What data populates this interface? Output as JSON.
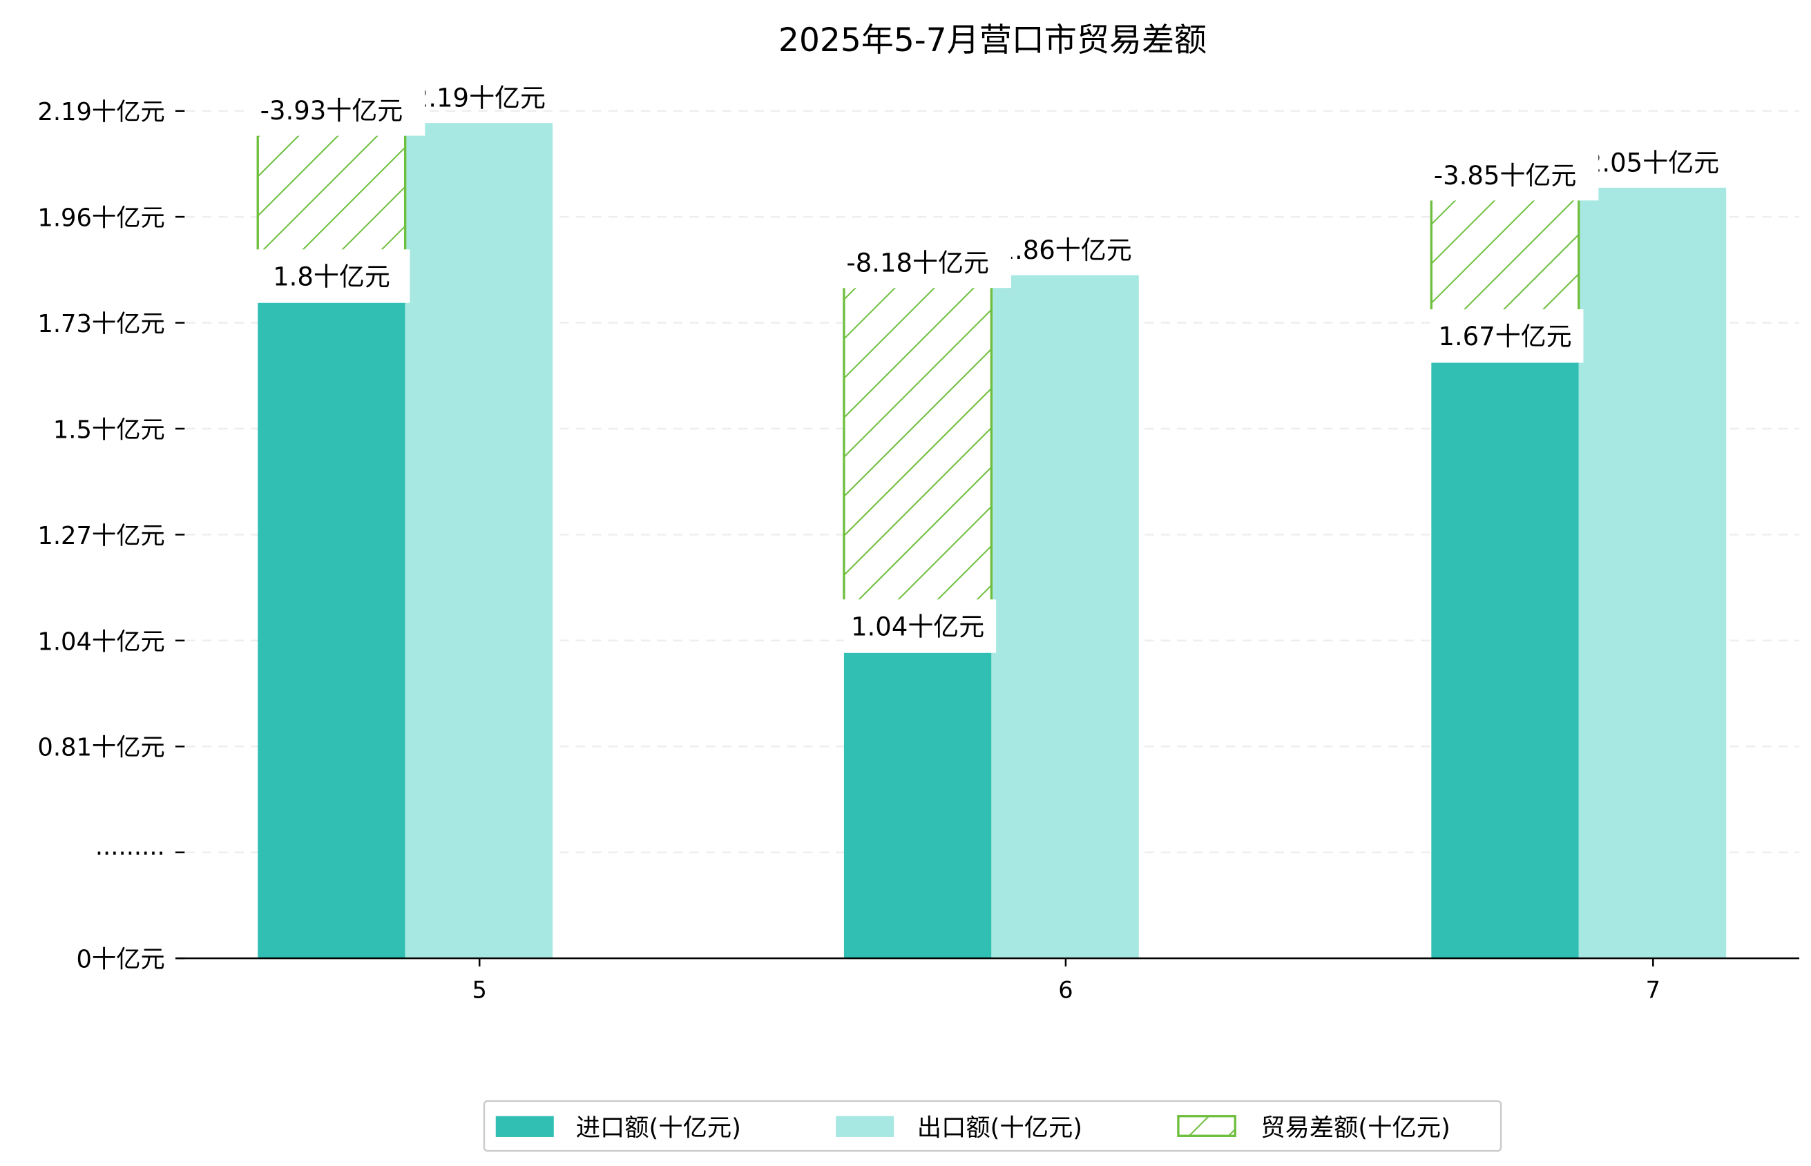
{
  "chart_data": {
    "type": "bar",
    "title": "2025年5-7月营口市贸易差额",
    "categories": [
      "5",
      "6",
      "7"
    ],
    "unit": "十亿元",
    "series": [
      {
        "name": "进口额(十亿元)",
        "values": [
          1.8,
          1.04,
          1.67
        ],
        "color": "#31bfb3"
      },
      {
        "name": "出口额(十亿元)",
        "values": [
          2.19,
          1.86,
          2.05
        ],
        "color": "#a8e8e2"
      },
      {
        "name": "贸易差额(十亿元)",
        "values": [
          -3.93,
          -8.18,
          -3.85
        ],
        "color": "#6fbf3f",
        "style": "hatched"
      }
    ],
    "data_labels": {
      "import": [
        "1.8十亿元",
        "1.04十亿元",
        "1.67十亿元"
      ],
      "export": [
        "2.19十亿元",
        "1.86十亿元",
        "2.05十亿元"
      ],
      "balance": [
        "-3.93十亿元",
        "-8.18十亿元",
        "-3.85十亿元"
      ]
    },
    "yticks": [
      "0十亿元",
      "·········",
      "0.81十亿元",
      "1.04十亿元",
      "1.27十亿元",
      "1.5十亿元",
      "1.73十亿元",
      "1.96十亿元",
      "2.19十亿元"
    ],
    "ytick_values": [
      0,
      null,
      0.81,
      1.04,
      1.27,
      1.5,
      1.73,
      1.96,
      2.19
    ],
    "axis_break": true,
    "grid": true,
    "legend_position": "bottom-center"
  }
}
